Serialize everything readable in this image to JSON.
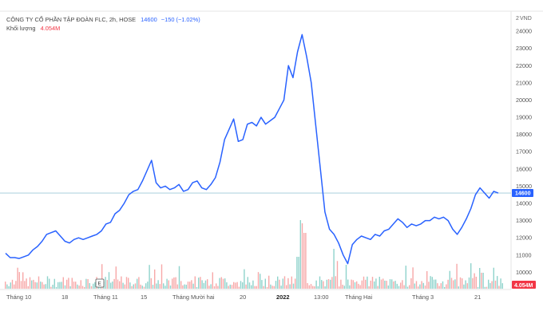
{
  "header": {
    "title": "CÔNG TY CỔ PHẦN TẬP ĐOÀN FLC, 2h, HOSE",
    "price": "14600",
    "change": "−150 (−1.02%)",
    "volume_label": "Khối lượng",
    "volume_value": "4.054M"
  },
  "y_axis": {
    "unit": "VND",
    "unit_prefix": "2",
    "ticks": [
      "24000",
      "23000",
      "22000",
      "21000",
      "20000",
      "19000",
      "18000",
      "17000",
      "16000",
      "15000",
      "14000",
      "13000",
      "12000",
      "11000",
      "10000"
    ]
  },
  "price_badge": "14600",
  "volume_badge": "4.054M",
  "event_marker": "E",
  "x_axis": {
    "labels": [
      "Tháng 10",
      "18",
      "Tháng 11",
      "15",
      "Tháng Mười hai",
      "20",
      "2022",
      "13:00",
      "Tháng Hai",
      "Tháng 3",
      "21"
    ]
  },
  "colors": {
    "line": "#2962ff",
    "price_line": "#9ec9d8",
    "vol_up": "#8fd3cc",
    "vol_down": "#f7a8a8",
    "badge_price": "#2962ff",
    "badge_vol": "#f23645"
  },
  "chart_data": {
    "type": "line",
    "title": "CÔNG TY CỔ PHẦN TẬP ĐOÀN FLC, 2h, HOSE",
    "ylim": [
      9600,
      24700
    ],
    "last_price": 14600,
    "series": [
      {
        "values": [
          11100,
          10850,
          10850,
          10800,
          10900,
          11000,
          11300,
          11500,
          11800,
          12200,
          12300,
          12400,
          12100,
          11800,
          11700,
          11900,
          12000,
          11900,
          12000,
          12100,
          12200,
          12400,
          12800,
          12900,
          13400,
          13600,
          14000,
          14500,
          14700,
          14800,
          15300,
          15900,
          16500,
          15200,
          14900,
          15000,
          14800,
          14900,
          15100,
          14700,
          14800,
          15200,
          15300,
          14900,
          14800,
          15100,
          15500,
          16400,
          17700,
          18300,
          18900,
          17600,
          17700,
          18600,
          18700,
          18500,
          19000,
          18600,
          18800,
          19000,
          19500,
          20000,
          22000,
          21300,
          22800,
          23800,
          22500,
          21000,
          18500,
          16000,
          13500,
          12500,
          12200,
          11700,
          11000,
          10500,
          11600,
          11900,
          12100,
          12000,
          11900,
          12200,
          12100,
          12400,
          12500,
          12800,
          13100,
          12900,
          12600,
          12800,
          12700,
          12800,
          13000,
          13000,
          13200,
          13100,
          13200,
          13000,
          12500,
          12200,
          12600,
          13100,
          13700,
          14500,
          14900,
          14600,
          14300,
          14700,
          14600
        ]
      }
    ]
  }
}
